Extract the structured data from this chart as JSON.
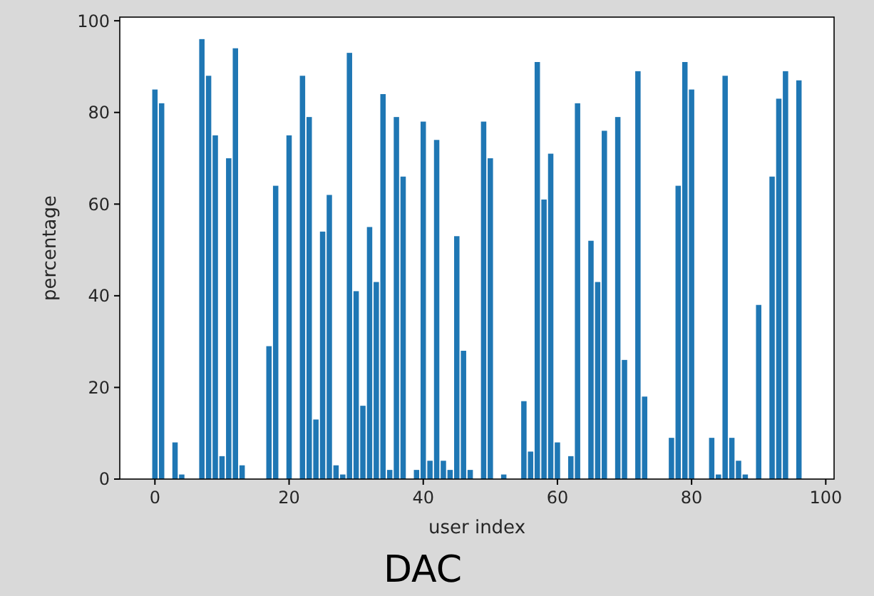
{
  "chart_data": {
    "type": "bar",
    "xlabel": "user index",
    "ylabel": "percentage",
    "annotations": [
      "DAC"
    ],
    "x": [
      0,
      1,
      2,
      3,
      4,
      5,
      6,
      7,
      8,
      9,
      10,
      11,
      12,
      13,
      14,
      15,
      16,
      17,
      18,
      19,
      20,
      21,
      22,
      23,
      24,
      25,
      26,
      27,
      28,
      29,
      30,
      31,
      32,
      33,
      34,
      35,
      36,
      37,
      38,
      39,
      40,
      41,
      42,
      43,
      44,
      45,
      46,
      47,
      48,
      49,
      50,
      51,
      52,
      53,
      54,
      55,
      56,
      57,
      58,
      59,
      60,
      61,
      62,
      63,
      64,
      65,
      66,
      67,
      68,
      69,
      70,
      71,
      72,
      73,
      74,
      75,
      76,
      77,
      78,
      79,
      80,
      81,
      82,
      83,
      84,
      85,
      86,
      87,
      88,
      89,
      90,
      91,
      92,
      93,
      94,
      95,
      96
    ],
    "values": [
      85,
      82,
      0,
      8,
      1,
      0,
      0,
      96,
      88,
      75,
      5,
      70,
      94,
      3,
      0,
      0,
      0,
      29,
      64,
      0,
      75,
      0,
      88,
      79,
      13,
      54,
      62,
      3,
      1,
      93,
      41,
      16,
      55,
      43,
      84,
      2,
      79,
      66,
      0,
      2,
      78,
      4,
      74,
      4,
      2,
      53,
      28,
      2,
      0,
      78,
      70,
      0,
      1,
      0,
      0,
      17,
      6,
      91,
      61,
      71,
      8,
      0,
      5,
      82,
      0,
      52,
      43,
      76,
      0,
      79,
      26,
      0,
      89,
      18,
      0,
      0,
      0,
      9,
      64,
      91,
      85,
      0,
      0,
      9,
      1,
      88,
      9,
      4,
      1,
      0,
      38,
      0,
      66,
      83,
      89,
      0,
      87
    ],
    "color": "#1f77b4",
    "xlim": [
      -5.24,
      101.24
    ],
    "ylim": [
      0,
      100.8
    ],
    "xticks": [
      0,
      20,
      40,
      60,
      80,
      100
    ],
    "yticks": [
      0,
      20,
      40,
      60,
      80,
      100
    ]
  }
}
